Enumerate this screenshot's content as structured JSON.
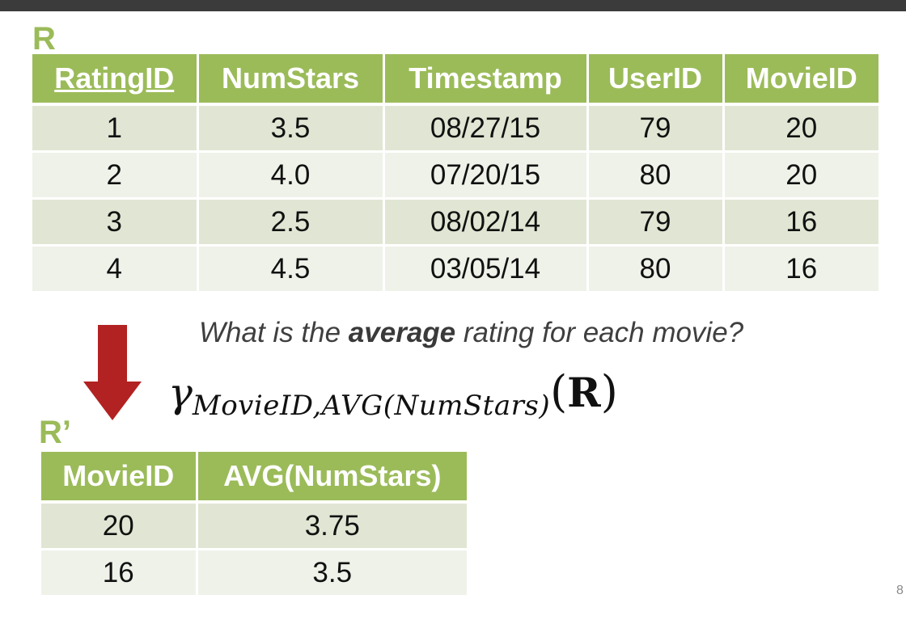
{
  "relation_r": {
    "label": "R",
    "headers": [
      "RatingID",
      "NumStars",
      "Timestamp",
      "UserID",
      "MovieID"
    ],
    "rows": [
      [
        "1",
        "3.5",
        "08/27/15",
        "79",
        "20"
      ],
      [
        "2",
        "4.0",
        "07/20/15",
        "80",
        "20"
      ],
      [
        "3",
        "2.5",
        "08/02/14",
        "79",
        "16"
      ],
      [
        "4",
        "4.5",
        "03/05/14",
        "80",
        "16"
      ]
    ]
  },
  "question": {
    "prefix": "What is the ",
    "emphasis": "average",
    "suffix": " rating for each movie?"
  },
  "formula": {
    "operator": "γ",
    "subscript": "MovieID,AVG(NumStars)",
    "open_paren": "(",
    "argument": "R",
    "close_paren": ")"
  },
  "relation_r_prime": {
    "label": "R’",
    "headers": [
      "MovieID",
      "AVG(NumStars)"
    ],
    "rows": [
      [
        "20",
        "3.75"
      ],
      [
        "16",
        "3.5"
      ]
    ]
  },
  "page_number": "8",
  "colors": {
    "header_green": "#9bbb59",
    "row_dark": "#e0e6d3",
    "row_light": "#eff2e9",
    "arrow_red": "#b22222"
  },
  "icons": {
    "arrow": "down-arrow-icon"
  }
}
